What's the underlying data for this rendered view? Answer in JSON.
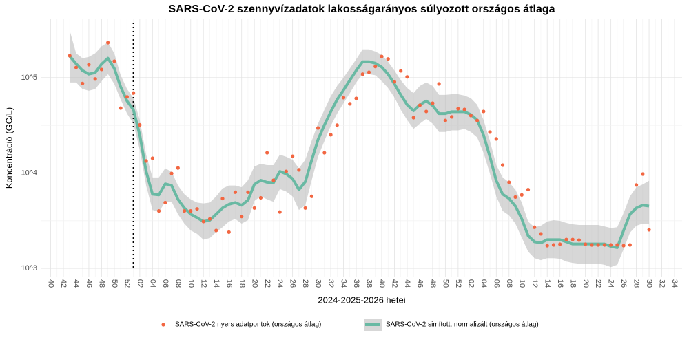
{
  "chart_data": {
    "type": "line",
    "title": "SARS-CoV-2 szennyvízadatok lakosságarányos súlyozott országos átlaga",
    "x_label": "2024-2025-2026 hetei",
    "y_label": "Koncentráció (GC/L)",
    "log_y": true,
    "grid": true,
    "legend": "bottom",
    "ylim": [
      820,
      410000
    ],
    "yticks": [
      {
        "value": 1000,
        "label": "10^3"
      },
      {
        "value": 10000,
        "label": "10^4"
      },
      {
        "value": 100000,
        "label": "10^5"
      }
    ],
    "vline": 13,
    "categories": [
      "40",
      null,
      "42",
      null,
      "44",
      null,
      "46",
      null,
      "48",
      null,
      "50",
      null,
      "52",
      null,
      "02",
      null,
      "04",
      null,
      "06",
      null,
      "08",
      null,
      "10",
      null,
      "12",
      null,
      "14",
      null,
      "16",
      null,
      "18",
      null,
      "20",
      null,
      "22",
      null,
      "24",
      null,
      "26",
      null,
      "28",
      null,
      "30",
      null,
      "32",
      null,
      "34",
      null,
      "36",
      null,
      "38",
      null,
      "40",
      null,
      "42",
      null,
      "44",
      null,
      "46",
      null,
      "48",
      null,
      "50",
      null,
      "52",
      null,
      "02",
      null,
      "04",
      null,
      "06",
      null,
      "08",
      null,
      "10",
      null,
      "12",
      null,
      "14",
      null,
      "16",
      null,
      "18",
      null,
      "20",
      null,
      "22",
      null,
      "24",
      null,
      "26",
      null,
      "28",
      null,
      "30",
      null,
      "32",
      null,
      "34"
    ],
    "ribbon": {
      "color": "#bdbdbd",
      "upper": [
        null,
        null,
        null,
        312000,
        180000,
        160000,
        165000,
        180000,
        213000,
        235000,
        180000,
        106000,
        76000,
        61000,
        36000,
        15600,
        9000,
        9000,
        11200,
        10300,
        7400,
        6000,
        5300,
        4900,
        4800,
        4900,
        5700,
        6900,
        7400,
        7400,
        7100,
        8400,
        11700,
        12500,
        12100,
        12100,
        15600,
        14800,
        13800,
        11200,
        13800,
        21700,
        33000,
        46000,
        64000,
        82000,
        100000,
        125000,
        156000,
        198000,
        198000,
        188000,
        174000,
        147000,
        119000,
        94000,
        78000,
        69000,
        82000,
        89000,
        82000,
        66000,
        66000,
        67000,
        67000,
        65000,
        61000,
        52000,
        36000,
        21700,
        12100,
        9000,
        8000,
        6700,
        4900,
        3100,
        2700,
        2800,
        3100,
        3200,
        3150,
        3000,
        2900,
        2850,
        2850,
        2850,
        2850,
        2750,
        2650,
        2700,
        3800,
        5700,
        7100,
        7600,
        8300,
        null,
        null,
        null,
        null
      ],
      "lower": [
        null,
        null,
        null,
        89000,
        89000,
        76000,
        73000,
        76000,
        92000,
        109000,
        86000,
        59000,
        42000,
        33000,
        17500,
        7400,
        4100,
        3900,
        5000,
        5000,
        3700,
        2950,
        2500,
        2300,
        2000,
        2080,
        2400,
        2700,
        3100,
        3300,
        2950,
        3200,
        5100,
        5700,
        5300,
        5000,
        6800,
        6400,
        5700,
        4100,
        4600,
        8400,
        14800,
        21700,
        31300,
        42000,
        54000,
        69000,
        89000,
        109000,
        109000,
        106000,
        92000,
        78000,
        62000,
        46000,
        36000,
        29000,
        33000,
        37000,
        33000,
        27000,
        27000,
        28000,
        28000,
        29000,
        27000,
        23600,
        16300,
        9900,
        5700,
        4000,
        3600,
        2950,
        2100,
        1500,
        1280,
        1220,
        1280,
        1280,
        1260,
        1180,
        1140,
        1120,
        1120,
        1120,
        1120,
        1090,
        1030,
        1090,
        1590,
        2370,
        2800,
        2950,
        2950,
        null,
        null,
        null,
        null
      ]
    },
    "series": [
      {
        "name": "SARS-CoV-2 nyers adatpontok (országos átlag)",
        "color": "#f26641",
        "style": "points",
        "values": [
          null,
          null,
          null,
          170000,
          128000,
          87000,
          137000,
          97000,
          122000,
          233000,
          149000,
          48000,
          63000,
          69000,
          32000,
          13400,
          14300,
          4000,
          4900,
          9900,
          11300,
          4000,
          4000,
          4200,
          3100,
          3300,
          2500,
          5400,
          2400,
          6300,
          3500,
          6300,
          4300,
          5500,
          16300,
          8400,
          3900,
          10400,
          15000,
          10800,
          4300,
          5700,
          29700,
          16300,
          25200,
          31800,
          61800,
          53200,
          60700,
          109000,
          114000,
          131000,
          167000,
          157000,
          90500,
          118000,
          102000,
          38100,
          51400,
          44300,
          54000,
          86100,
          35600,
          38800,
          47300,
          46500,
          40100,
          35600,
          44300,
          26900,
          22800,
          12100,
          8000,
          5600,
          5900,
          6700,
          2700,
          2300,
          1730,
          1760,
          1790,
          2010,
          2010,
          1980,
          1790,
          1760,
          1760,
          1760,
          1760,
          1760,
          1730,
          1760,
          7500,
          9750,
          2540,
          null,
          null,
          null,
          null
        ]
      },
      {
        "name": "SARS-CoV-2 simított, normalizált (országos átlag)",
        "color": "#69b9a3",
        "style": "line",
        "values": [
          null,
          null,
          null,
          168000,
          140000,
          119000,
          109000,
          113000,
          139000,
          160000,
          125000,
          80000,
          57000,
          46000,
          25000,
          10400,
          6000,
          5900,
          7700,
          7400,
          5300,
          4300,
          3700,
          3400,
          3100,
          3200,
          3700,
          4300,
          4700,
          4900,
          4600,
          5200,
          7600,
          8400,
          8000,
          7900,
          10400,
          9800,
          8700,
          6700,
          8100,
          13600,
          22400,
          31900,
          44000,
          59000,
          74000,
          94000,
          119000,
          147000,
          147000,
          142000,
          129000,
          109000,
          86000,
          66000,
          52000,
          45000,
          52000,
          57000,
          51000,
          42000,
          42000,
          44000,
          44000,
          44000,
          41000,
          36000,
          25000,
          14800,
          8300,
          6000,
          5400,
          4500,
          3300,
          2200,
          1900,
          1850,
          2000,
          2000,
          2000,
          1900,
          1800,
          1800,
          1800,
          1800,
          1800,
          1800,
          1700,
          1650,
          2500,
          3700,
          4300,
          4600,
          4500,
          null,
          null,
          null,
          null
        ]
      }
    ]
  }
}
